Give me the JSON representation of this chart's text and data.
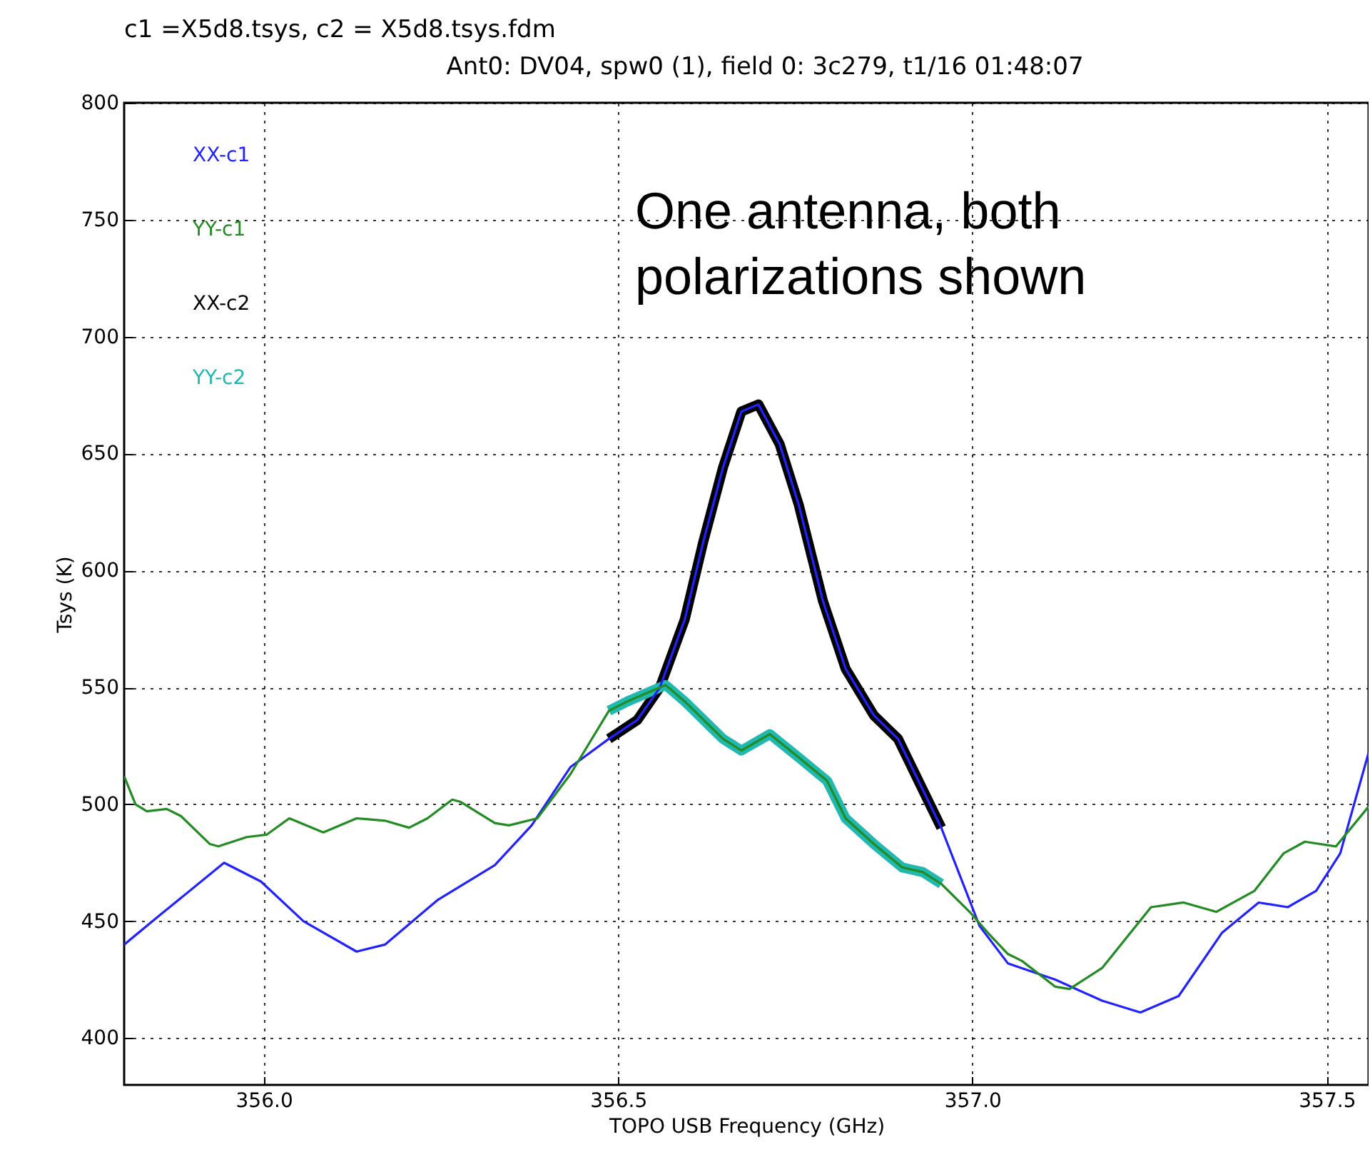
{
  "chart_data": {
    "type": "line",
    "title": "c1 =X5d8.tsys,  c2 = X5d8.tsys.fdm",
    "subtitle": "Ant0: DV04,  spw0 (1),  field 0: 3c279,  t1/16  01:48:07",
    "xlabel": "TOPO USB Frequency (GHz)",
    "ylabel": "Tsys (K)",
    "xlim": [
      355.803,
      357.559
    ],
    "ylim": [
      380,
      800
    ],
    "xticks": [
      {
        "value": 356,
        "label": "356.0"
      },
      {
        "value": 356.5,
        "label": "356.5"
      },
      {
        "value": 357,
        "label": "357.0"
      },
      {
        "value": 357.5,
        "label": "357.5"
      }
    ],
    "yticks": [
      400,
      450,
      500,
      550,
      600,
      650,
      700,
      750,
      800
    ],
    "grid": true,
    "legend": "top left",
    "annotations": [
      "One antenna, both polarizations shown"
    ],
    "series": [
      {
        "name": "XX-c1",
        "color": "#2222ff",
        "x": [
          355.803,
          355.855,
          355.944,
          355.996,
          356.056,
          356.131,
          356.171,
          356.245,
          356.326,
          356.378,
          356.433,
          356.487,
          356.527,
          356.559,
          356.594,
          356.62,
          356.648,
          356.674,
          356.698,
          356.728,
          356.755,
          356.789,
          356.821,
          356.861,
          356.895,
          356.956,
          357.01,
          357.05,
          357.117,
          357.183,
          357.237,
          357.291,
          357.352,
          357.404,
          357.445,
          357.485,
          357.519,
          357.559
        ],
        "values": [
          440,
          453,
          475,
          467,
          450,
          437,
          440,
          459,
          474,
          491,
          516,
          528,
          536,
          550,
          579,
          612,
          644,
          668,
          671,
          654,
          628,
          587,
          558,
          538,
          528,
          490,
          448,
          432,
          425,
          416,
          411,
          418,
          445,
          458,
          456,
          463,
          479,
          522
        ]
      },
      {
        "name": "YY-c1",
        "color": "#228b22",
        "x": [
          355.803,
          355.819,
          355.835,
          355.863,
          355.883,
          355.924,
          355.936,
          355.976,
          356.004,
          356.036,
          356.084,
          356.131,
          356.171,
          356.205,
          356.231,
          356.266,
          356.278,
          356.326,
          356.346,
          356.386,
          356.433,
          356.487,
          356.513,
          356.567,
          356.594,
          356.648,
          356.674,
          356.714,
          356.755,
          356.795,
          356.821,
          356.861,
          356.901,
          356.93,
          356.956,
          356.996,
          357.022,
          357.05,
          357.07,
          357.117,
          357.137,
          357.183,
          357.252,
          357.298,
          357.344,
          357.398,
          357.439,
          357.469,
          357.513,
          357.559
        ],
        "values": [
          512,
          500,
          497,
          498,
          495,
          483,
          482,
          486,
          487,
          494,
          488,
          494,
          493,
          490,
          494,
          502,
          501,
          492,
          491,
          494,
          513,
          540,
          544,
          551,
          544,
          528,
          523,
          530,
          520,
          510,
          494,
          483,
          473,
          471,
          466,
          454,
          445,
          436,
          433,
          422,
          421,
          430,
          456,
          458,
          454,
          463,
          479,
          484,
          482,
          499
        ]
      },
      {
        "name": "XX-c2",
        "color": "#000000",
        "x": [
          356.487,
          356.527,
          356.559,
          356.594,
          356.62,
          356.648,
          356.674,
          356.698,
          356.728,
          356.755,
          356.789,
          356.821,
          356.861,
          356.895,
          356.956
        ],
        "values": [
          528,
          536,
          550,
          579,
          612,
          644,
          668,
          671,
          654,
          628,
          587,
          558,
          538,
          528,
          490
        ]
      },
      {
        "name": "YY-c2",
        "color": "#20b8b0",
        "x": [
          356.487,
          356.513,
          356.567,
          356.594,
          356.648,
          356.674,
          356.714,
          356.755,
          356.795,
          356.821,
          356.861,
          356.901,
          356.93,
          356.956
        ],
        "values": [
          540,
          544,
          551,
          544,
          528,
          523,
          530,
          520,
          510,
          494,
          483,
          473,
          471,
          466
        ]
      }
    ]
  }
}
